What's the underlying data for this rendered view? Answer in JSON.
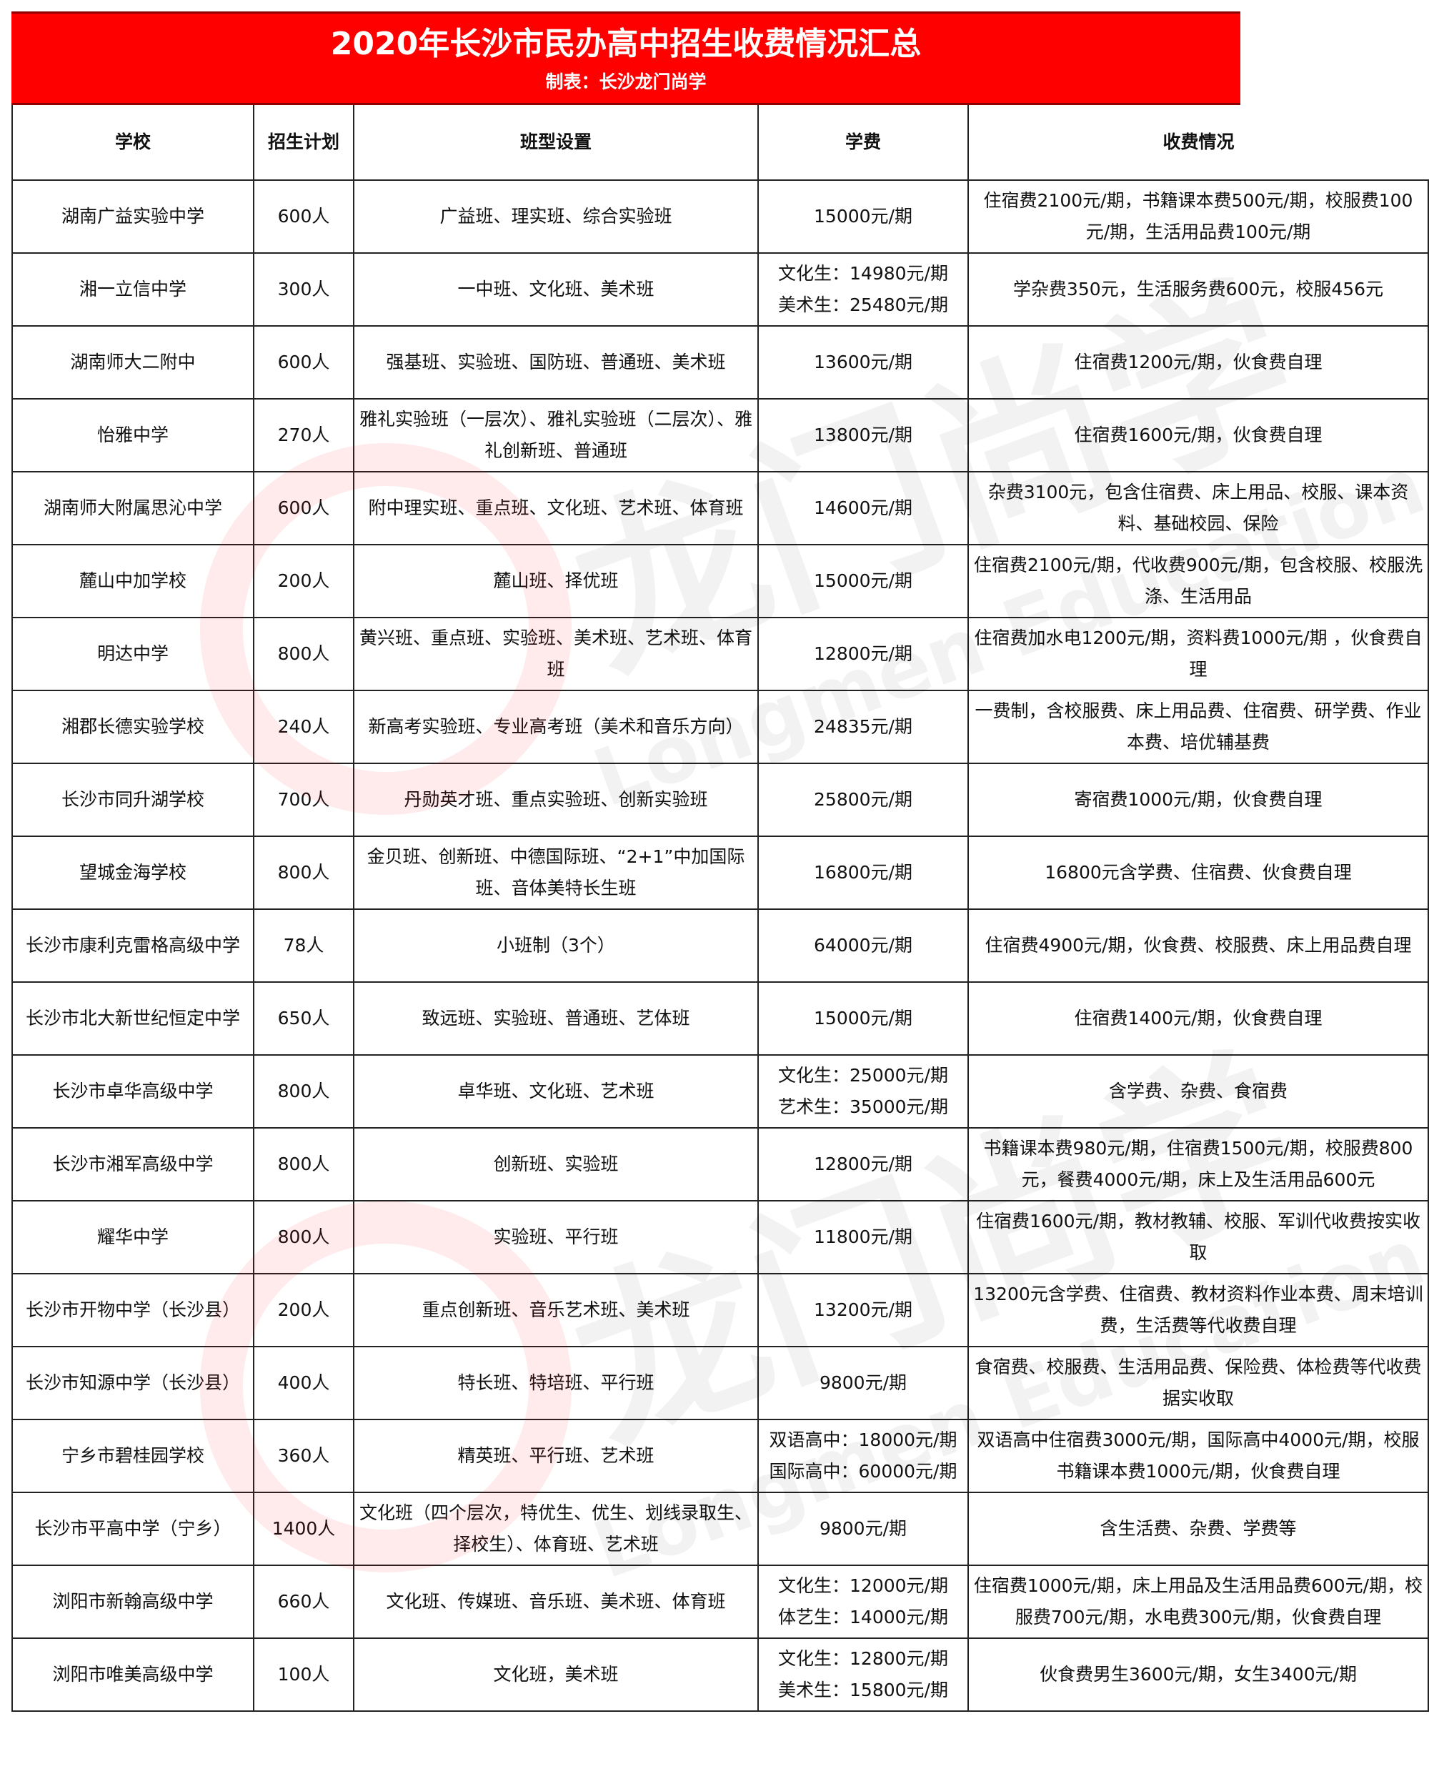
{
  "header": {
    "title": "2020年长沙市民办高中招生收费情况汇总",
    "subtitle": "制表：长沙龙门尚学",
    "bg_color": "#ff0000"
  },
  "watermark": {
    "logo": "longmen-logo",
    "text_cn": "龙门尚学",
    "text_en": "Longmen Education"
  },
  "columns": [
    "学校",
    "招生计划",
    "班型设置",
    "学费",
    "收费情况"
  ],
  "rows": [
    [
      "湖南广益实验中学",
      "600人",
      "广益班、理实班、综合实验班",
      "15000元/期",
      "住宿费2100元/期，书籍课本费500元/期，校服费100元/期，生活用品费100元/期"
    ],
    [
      "湘一立信中学",
      "300人",
      "一中班、文化班、美术班",
      "文化生：14980元/期\n美术生：25480元/期",
      "学杂费350元，生活服务费600元，校服456元"
    ],
    [
      "湖南师大二附中",
      "600人",
      "强基班、实验班、国防班、普通班、美术班",
      "13600元/期",
      "住宿费1200元/期，伙食费自理"
    ],
    [
      "怡雅中学",
      "270人",
      "雅礼实验班（一层次）、雅礼实验班（二层次）、雅礼创新班、普通班",
      "13800元/期",
      "住宿费1600元/期，伙食费自理"
    ],
    [
      "湖南师大附属思沁中学",
      "600人",
      "附中理实班、重点班、文化班、艺术班、体育班",
      "14600元/期",
      "杂费3100元，包含住宿费、床上用品、校服、课本资料、基础校园、保险"
    ],
    [
      "麓山中加学校",
      "200人",
      "麓山班、择优班",
      "15000元/期",
      "住宿费2100元/期，代收费900元/期，包含校服、校服洗涤、生活用品"
    ],
    [
      "明达中学",
      "800人",
      "黄兴班、重点班、实验班、美术班、艺术班、体育班",
      "12800元/期",
      "住宿费加水电1200元/期，资料费1000元/期 ，伙食费自理"
    ],
    [
      "湘郡长德实验学校",
      "240人",
      "新高考实验班、专业高考班（美术和音乐方向）",
      "24835元/期",
      "一费制，含校服费、床上用品费、住宿费、研学费、作业本费、培优辅基费"
    ],
    [
      "长沙市同升湖学校",
      "700人",
      "丹勋英才班、重点实验班、创新实验班",
      "25800元/期",
      "寄宿费1000元/期，伙食费自理"
    ],
    [
      "望城金海学校",
      "800人",
      "金贝班、创新班、中德国际班、“2+1”中加国际班、音体美特长生班",
      "16800元/期",
      "16800元含学费、住宿费、伙食费自理"
    ],
    [
      "长沙市康利克雷格高级中学",
      "78人",
      "小班制（3个）",
      "64000元/期",
      "住宿费4900元/期，伙食费、校服费、床上用品费自理"
    ],
    [
      "长沙市北大新世纪恒定中学",
      "650人",
      "致远班、实验班、普通班、艺体班",
      "15000元/期",
      "住宿费1400元/期，伙食费自理"
    ],
    [
      "长沙市卓华高级中学",
      "800人",
      "卓华班、文化班、艺术班",
      "文化生：25000元/期\n艺术生：35000元/期",
      "含学费、杂费、食宿费"
    ],
    [
      "长沙市湘军高级中学",
      "800人",
      "创新班、实验班",
      "12800元/期",
      "书籍课本费980元/期，住宿费1500元/期，校服费800元，餐费4000元/期，床上及生活用品600元"
    ],
    [
      "耀华中学",
      "800人",
      "实验班、平行班",
      "11800元/期",
      "住宿费1600元/期，教材教辅、校服、军训代收费按实收取"
    ],
    [
      "长沙市开物中学（长沙县）",
      "200人",
      "重点创新班、音乐艺术班、美术班",
      "13200元/期",
      "13200元含学费、住宿费、教材资料作业本费、周末培训费，生活费等代收费自理"
    ],
    [
      "长沙市知源中学（长沙县）",
      "400人",
      "特长班、特培班、平行班",
      "9800元/期",
      "食宿费、校服费、生活用品费、保险费、体检费等代收费据实收取"
    ],
    [
      "宁乡市碧桂园学校",
      "360人",
      "精英班、平行班、艺术班",
      "双语高中：18000元/期\n国际高中：60000元/期",
      "双语高中住宿费3000元/期，国际高中4000元/期，校服书籍课本费1000元/期，伙食费自理"
    ],
    [
      "长沙市平高中学（宁乡）",
      "1400人",
      "文化班（四个层次，特优生、优生、划线录取生、择校生）、体育班、艺术班",
      "9800元/期",
      "含生活费、杂费、学费等"
    ],
    [
      "浏阳市新翰高级中学",
      "660人",
      "文化班、传媒班、音乐班、美术班、体育班",
      "文化生：12000元/期\n体艺生：14000元/期",
      "住宿费1000元/期，床上用品及生活用品费600元/期，校服费700元/期，水电费300元/期，伙食费自理"
    ],
    [
      "浏阳市唯美高级中学",
      "100人",
      "文化班，美术班",
      "文化生：12800元/期\n美术生：15800元/期",
      "伙食费男生3600元/期，女生3400元/期"
    ]
  ]
}
